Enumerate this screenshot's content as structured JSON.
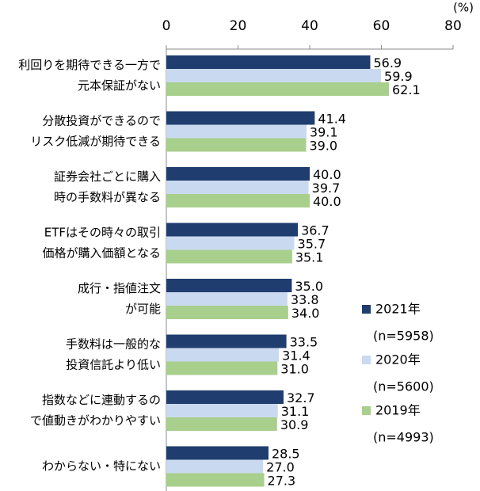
{
  "chart_data": {
    "type": "bar",
    "orientation": "horizontal",
    "x_unit": "(%)",
    "categories": [
      [
        "利回りを期待できる一方で",
        "元本保証がない"
      ],
      [
        "分散投資ができるので",
        "リスク低減が期待できる"
      ],
      [
        "証券会社ごとに購入",
        "時の手数料が異なる"
      ],
      [
        "ETFはその時々の取引",
        "価格が購入価額となる"
      ],
      [
        "成行・指値注文",
        "が可能"
      ],
      [
        "手数料は一般的な",
        "投資信託より低い"
      ],
      [
        "指数などに連動するの",
        "で値動きがわかりやすい"
      ],
      [
        "わからない・特にない"
      ]
    ],
    "series": [
      {
        "name": "2021年",
        "sample": "(n=5958)",
        "color": "#1f3d6e",
        "values": [
          56.9,
          41.4,
          40,
          36.7,
          35,
          33.5,
          32.7,
          28.5
        ],
        "value_labels": [
          "56.9",
          "41.4",
          "40.0",
          "36.7",
          "35.0",
          "33.5",
          "32.7",
          "28.5"
        ]
      },
      {
        "name": "2020年",
        "sample": "(n=5600)",
        "color": "#c9daf0",
        "values": [
          59.9,
          39.1,
          39.7,
          35.7,
          33.8,
          31.4,
          31.1,
          27
        ],
        "value_labels": [
          "59.9",
          "39.1",
          "39.7",
          "35.7",
          "33.8",
          "31.4",
          "31.1",
          "27.0"
        ]
      },
      {
        "name": "2019年",
        "sample": "(n=4993)",
        "color": "#a8cf8c",
        "values": [
          62.1,
          39,
          40,
          35.1,
          34,
          31,
          30.9,
          27.3
        ],
        "value_labels": [
          "62.1",
          "39.0",
          "40.0",
          "35.1",
          "34.0",
          "31.0",
          "30.9",
          "27.3"
        ]
      }
    ],
    "xlim": [
      0,
      80
    ],
    "xticks": [
      0,
      20,
      40,
      60,
      80
    ]
  }
}
